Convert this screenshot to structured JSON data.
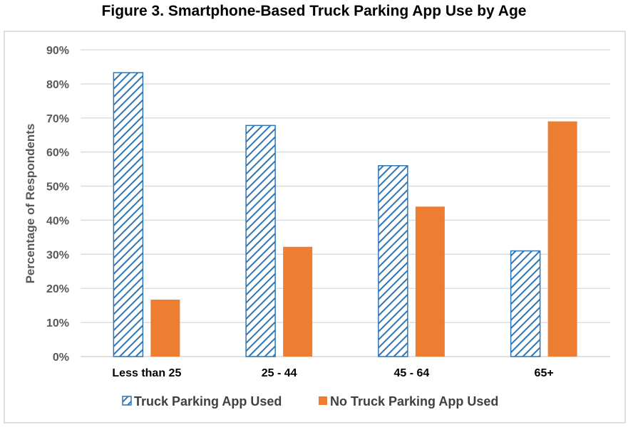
{
  "chart_data": {
    "type": "bar",
    "title": "Figure 3. Smartphone-Based Truck Parking App Use by Age",
    "ylabel": "Percentage of Respondents",
    "xlabel": "",
    "categories": [
      "Less than 25",
      "25 - 44",
      "45 - 64",
      "65+"
    ],
    "ylim": [
      0,
      90
    ],
    "yticks": [
      "0%",
      "10%",
      "20%",
      "30%",
      "40%",
      "50%",
      "60%",
      "70%",
      "80%",
      "90%"
    ],
    "grid": true,
    "legend_position": "bottom",
    "series": [
      {
        "name": "Truck Parking App Used",
        "values": [
          83.3,
          67.8,
          56,
          31
        ],
        "color": "#2E75B6",
        "pattern": "diagonal-hatch"
      },
      {
        "name": "No Truck Parking App Used",
        "values": [
          16.7,
          32.2,
          44,
          69
        ],
        "color": "#ED7D31",
        "pattern": "solid"
      }
    ]
  }
}
